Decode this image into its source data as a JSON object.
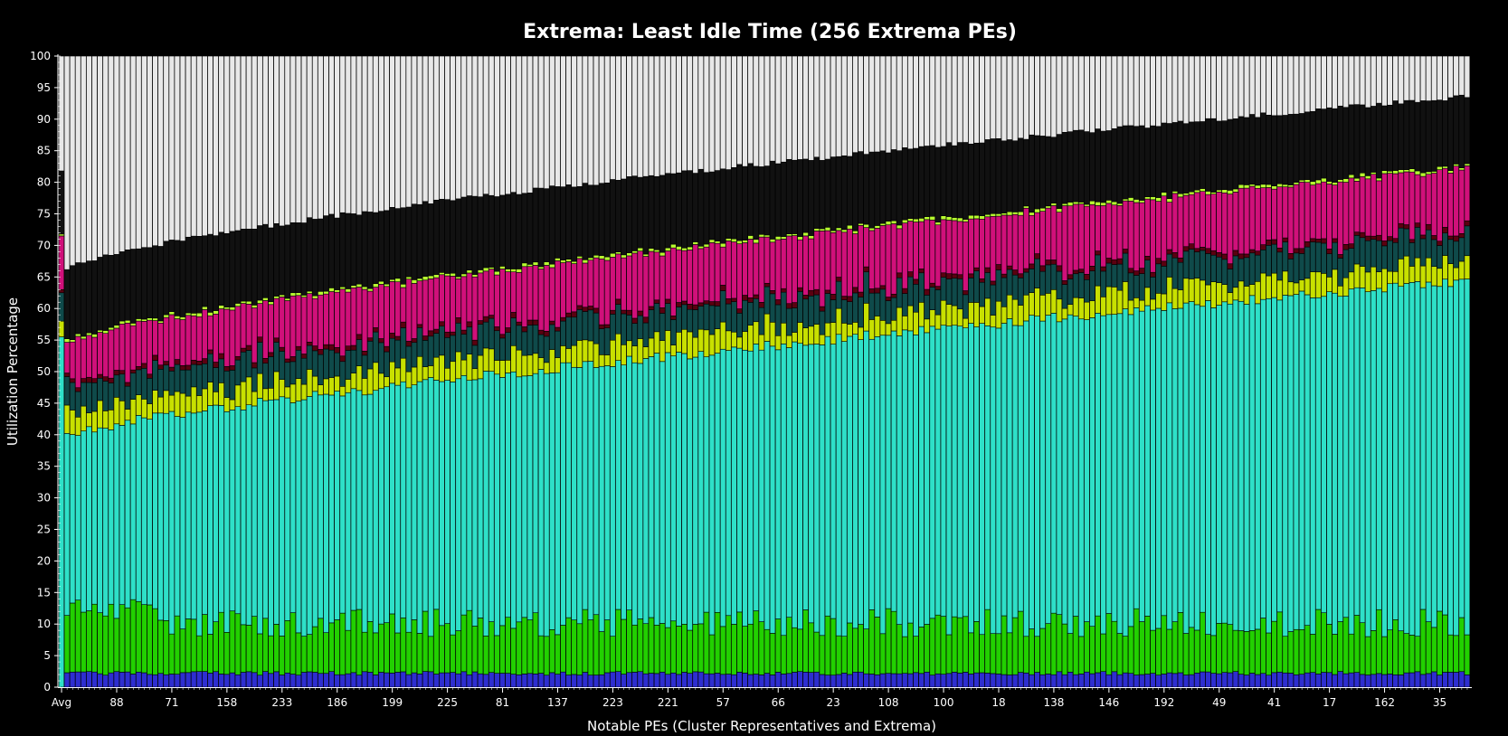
{
  "chart_data": {
    "type": "bar",
    "stacked": true,
    "title": "Extrema: Least Idle Time (256 Extrema PEs)",
    "xlabel": "Notable PEs (Cluster Representatives and Extrema)",
    "ylabel": "Utilization Percentage",
    "ylim": [
      0,
      100
    ],
    "yticks": [
      0,
      5,
      10,
      15,
      20,
      25,
      30,
      35,
      40,
      45,
      50,
      55,
      60,
      65,
      70,
      75,
      80,
      85,
      90,
      95,
      100
    ],
    "bar_count": 256,
    "xtick_labels": [
      "Avg",
      "88",
      "71",
      "158",
      "233",
      "186",
      "199",
      "225",
      "81",
      "137",
      "223",
      "221",
      "57",
      "66",
      "23",
      "108",
      "100",
      "18",
      "138",
      "146",
      "192",
      "49",
      "41",
      "17",
      "162",
      "35"
    ],
    "xtick_every": 10,
    "grid": false,
    "legend": "none",
    "colors": {
      "background": "#000000",
      "idle": "#e8e8e8",
      "overhead": "#111111",
      "blue": "#2e2ed0",
      "green": "#22d000",
      "cyan": "#2ee0c8",
      "yellow": "#c8e000",
      "teal": "#0f4a4a",
      "darkred": "#5a0010",
      "magenta": "#d0107a",
      "lime": "#b8ff30",
      "bar_outline": "#000000"
    },
    "series_order": [
      "blue",
      "green",
      "cyan",
      "yellow",
      "teal",
      "darkred",
      "magenta",
      "lime",
      "overhead",
      "idle"
    ],
    "average_bar": {
      "blue": 0,
      "green": 0,
      "cyan": 55.5,
      "yellow": 2.5,
      "teal": 4.5,
      "darkred": 0.5,
      "magenta": 8.5,
      "lime": 0.3,
      "overhead": 10,
      "idle": 18.2
    },
    "trend": {
      "utilization_total_pct": {
        "start": 55,
        "end": 82.5
      },
      "cyan_top_pct": {
        "start": 40,
        "end": 64.5
      },
      "idle_start_pct": {
        "start": 66,
        "end": 93.5
      },
      "blue_band_pct": 2.2,
      "green_band_pct": 9.5
    }
  }
}
